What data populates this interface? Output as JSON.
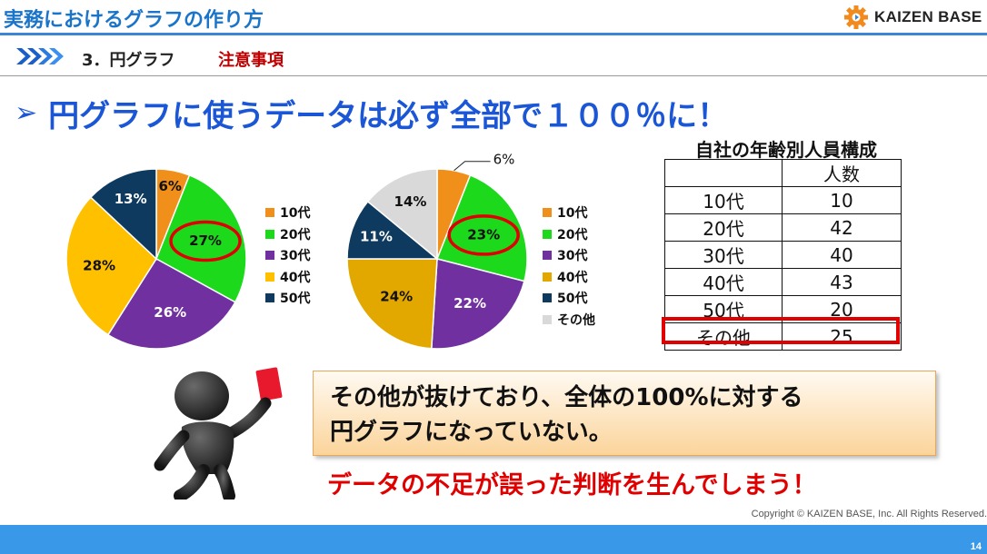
{
  "header": {
    "title": "実務におけるグラフの作り方",
    "logo_text": "KAIZEN BASE",
    "logo_icon": "gear-icon"
  },
  "section": {
    "label": "3．円グラフ",
    "note": "注意事項"
  },
  "headline": {
    "marker": "➢",
    "text": "円グラフに使うデータは必ず全部で１００％に！"
  },
  "colors": {
    "s10": "#f0901b",
    "s20": "#1cd91c",
    "s30": "#7030a0",
    "s40": "#ffc000",
    "s50": "#0d3a5e",
    "other": "#d9d9d9",
    "highlight": "#e00000",
    "title_blue": "#1a74c9"
  },
  "chart_data": [
    {
      "type": "pie",
      "slices": [
        {
          "label": "10代",
          "value": 6,
          "data_label": "6%",
          "color": "#f0901b"
        },
        {
          "label": "20代",
          "value": 27,
          "data_label": "27%",
          "color": "#1cd91c"
        },
        {
          "label": "30代",
          "value": 26,
          "data_label": "26%",
          "color": "#7030a0"
        },
        {
          "label": "40代",
          "value": 28,
          "data_label": "28%",
          "color": "#ffc000"
        },
        {
          "label": "50代",
          "value": 13,
          "data_label": "13%",
          "color": "#0d3a5e"
        }
      ],
      "legend": [
        "10代",
        "20代",
        "30代",
        "40代",
        "50代"
      ],
      "legend_position": "right",
      "highlighted_slice": "20代"
    },
    {
      "type": "pie",
      "slices": [
        {
          "label": "10代",
          "value": 6,
          "data_label": "6%",
          "color": "#f0901b"
        },
        {
          "label": "20代",
          "value": 23,
          "data_label": "23%",
          "color": "#1cd91c"
        },
        {
          "label": "30代",
          "value": 22,
          "data_label": "22%",
          "color": "#7030a0"
        },
        {
          "label": "40代",
          "value": 24,
          "data_label": "24%",
          "color": "#e3a800"
        },
        {
          "label": "50代",
          "value": 11,
          "data_label": "11%",
          "color": "#0d3a5e"
        },
        {
          "label": "その他",
          "value": 14,
          "data_label": "14%",
          "color": "#d9d9d9"
        }
      ],
      "legend": [
        "10代",
        "20代",
        "30代",
        "40代",
        "50代",
        "その他"
      ],
      "legend_position": "right",
      "highlighted_slice": "20代"
    }
  ],
  "table": {
    "title": "自社の年齢別人員構成",
    "header": [
      "",
      "人数"
    ],
    "rows": [
      [
        "10代",
        "10"
      ],
      [
        "20代",
        "42"
      ],
      [
        "30代",
        "40"
      ],
      [
        "40代",
        "43"
      ],
      [
        "50代",
        "20"
      ],
      [
        "その他",
        "25"
      ]
    ],
    "highlighted_row": "その他"
  },
  "callout": {
    "line1": "その他が抜けており、全体の100%に対する",
    "line2": "円グラフになっていない。"
  },
  "warning": "データの不足が誤った判断を生んでしまう！",
  "figure_icon": "referee-red-card-icon",
  "footer": {
    "copyright": "Copyright ©  KAIZEN BASE, Inc.  All Rights Reserved.",
    "page": "14"
  }
}
